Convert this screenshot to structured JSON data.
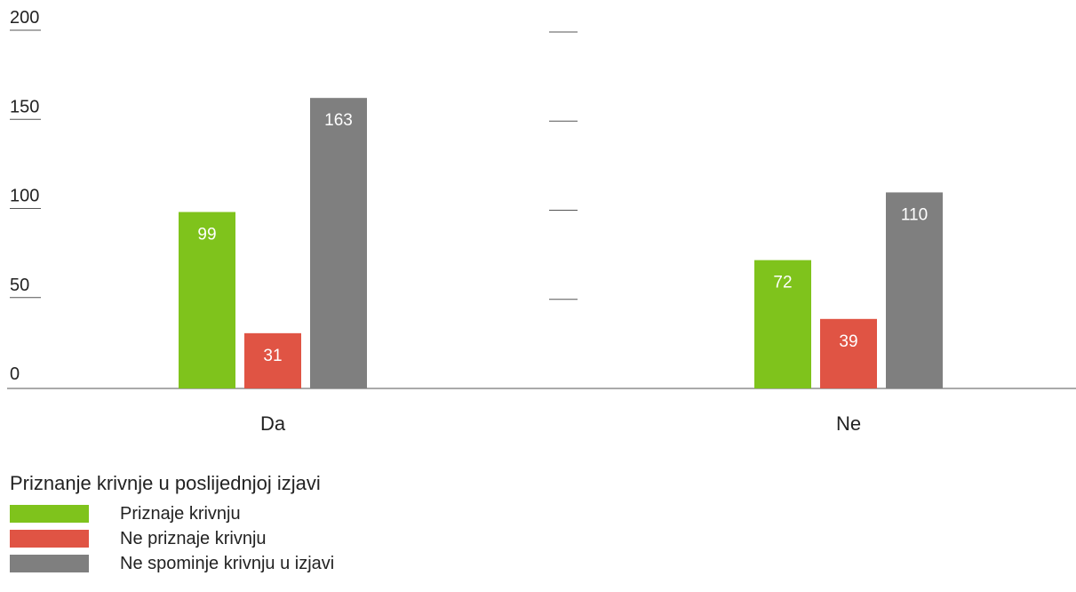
{
  "chart_data": {
    "type": "bar",
    "categories": [
      "Da",
      "Ne"
    ],
    "series": [
      {
        "name": "Priznaje krivnju",
        "values": [
          99,
          72
        ],
        "color": "#7fc31c"
      },
      {
        "name": "Ne priznaje krivnju",
        "values": [
          31,
          39
        ],
        "color": "#e05444"
      },
      {
        "name": "Ne spominje krivnju u izjavi",
        "values": [
          163,
          110
        ],
        "color": "#7f7f7f"
      }
    ],
    "y_ticks": [
      "0",
      "50",
      "100",
      "150",
      "200"
    ],
    "ylim": [
      0,
      200
    ],
    "legend_title": "Priznanje krivnje u poslijednjoj izjavi",
    "legend_position": "bottom-left",
    "grid": false
  }
}
